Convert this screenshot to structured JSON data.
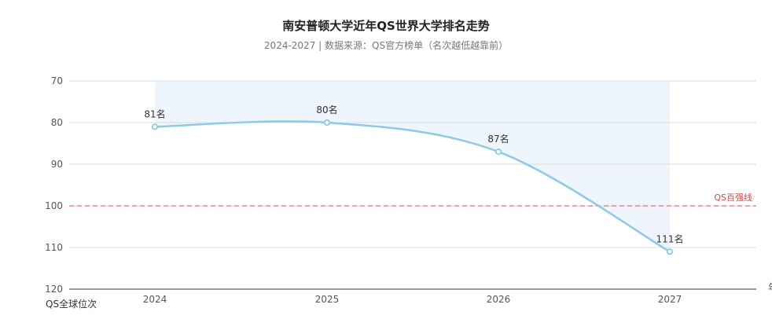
{
  "chart_data": {
    "type": "line",
    "title": "南安普顿大学近年QS世界大学排名走势",
    "subtitle": "2024-2027 | 数据来源：QS官方榜单（名次越低越靠前）",
    "categories": [
      "2024",
      "2025",
      "2026",
      "2027"
    ],
    "series": [
      {
        "values": [
          81,
          80,
          87,
          111
        ]
      }
    ],
    "data_labels": [
      "81名",
      "80名",
      "87名",
      "111名"
    ],
    "ylabel": "QS全球位次",
    "xlabel": "年",
    "ylim": [
      70,
      120
    ],
    "y_inverted": true,
    "yticks": [
      "70",
      "80",
      "90",
      "100",
      "110",
      "120"
    ],
    "reference_line": {
      "value": 100,
      "label": "QS百强线",
      "color": "#e07070"
    },
    "line_color": "#8ecae6",
    "area_color": "#eef5fc",
    "grid": true
  }
}
